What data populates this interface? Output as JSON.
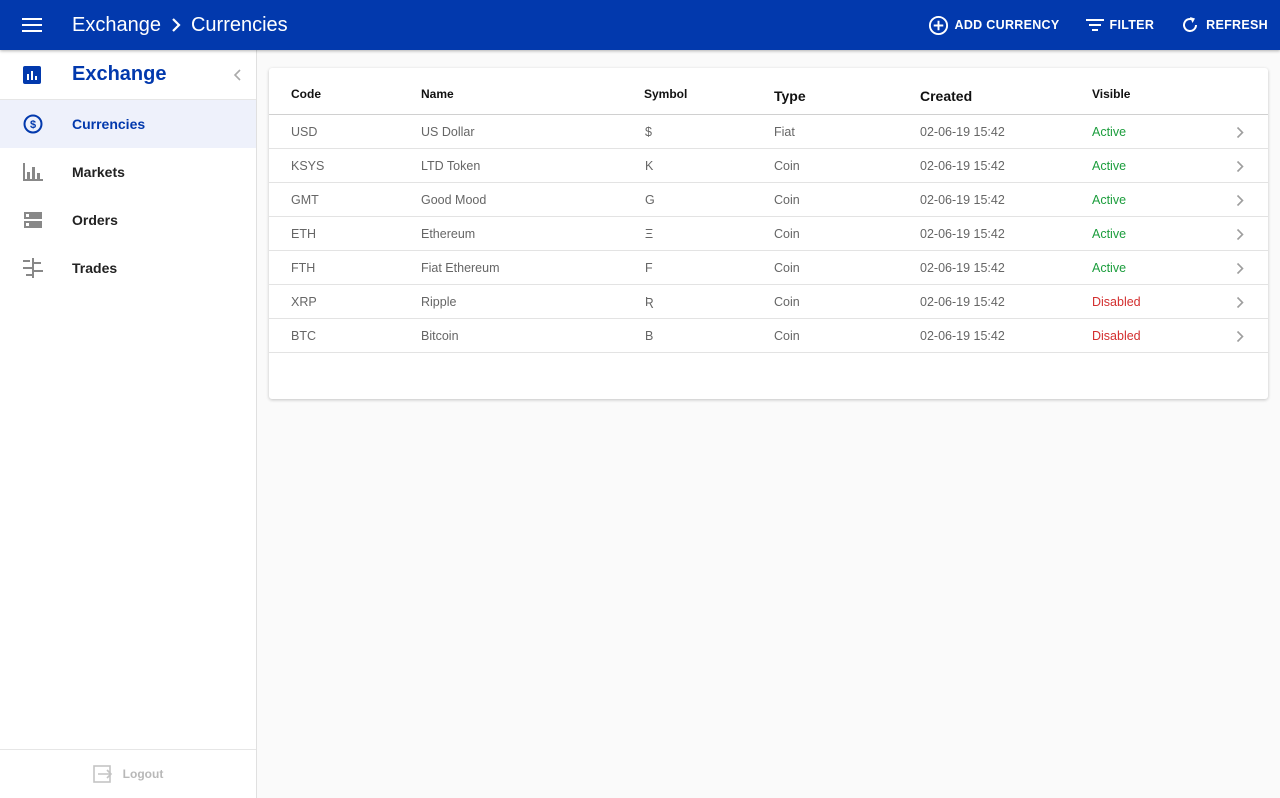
{
  "topbar": {
    "breadcrumb": [
      "Exchange",
      "Currencies"
    ],
    "actions": [
      {
        "label": "ADD CURRENCY",
        "icon": "add-circle-icon"
      },
      {
        "label": "FILTER",
        "icon": "filter-icon"
      },
      {
        "label": "REFRESH",
        "icon": "refresh-icon"
      }
    ]
  },
  "sidebar": {
    "title": "Exchange",
    "items": [
      {
        "label": "Currencies",
        "icon": "currency-icon",
        "active": true
      },
      {
        "label": "Markets",
        "icon": "bar-chart-icon",
        "active": false
      },
      {
        "label": "Orders",
        "icon": "orders-icon",
        "active": false
      },
      {
        "label": "Trades",
        "icon": "trades-icon",
        "active": false
      }
    ],
    "logout": "Logout"
  },
  "table": {
    "headers": {
      "code": "Code",
      "name": "Name",
      "symbol": "Symbol",
      "type": "Type",
      "created": "Created",
      "visible": "Visible"
    },
    "rows": [
      {
        "code": "USD",
        "name": "US Dollar",
        "symbol": "$",
        "type": "Fiat",
        "created": "02-06-19 15:42",
        "visible": "Active"
      },
      {
        "code": "KSYS",
        "name": "LTD Token",
        "symbol": "K",
        "type": "Coin",
        "created": "02-06-19 15:42",
        "visible": "Active"
      },
      {
        "code": "GMT",
        "name": "Good Mood",
        "symbol": "G",
        "type": "Coin",
        "created": "02-06-19 15:42",
        "visible": "Active"
      },
      {
        "code": "ETH",
        "name": "Ethereum",
        "symbol": "Ξ",
        "type": "Coin",
        "created": "02-06-19 15:42",
        "visible": "Active"
      },
      {
        "code": "FTH",
        "name": "Fiat Ethereum",
        "symbol": "F",
        "type": "Coin",
        "created": "02-06-19 15:42",
        "visible": "Active"
      },
      {
        "code": "XRP",
        "name": "Ripple",
        "symbol": "Ʀ",
        "type": "Coin",
        "created": "02-06-19 15:42",
        "visible": "Disabled"
      },
      {
        "code": "BTC",
        "name": "Bitcoin",
        "symbol": "B",
        "type": "Coin",
        "created": "02-06-19 15:42",
        "visible": "Disabled"
      }
    ]
  },
  "colors": {
    "primary": "#0239ad",
    "active": "#1b9d3c",
    "disabled": "#d32f2f"
  }
}
